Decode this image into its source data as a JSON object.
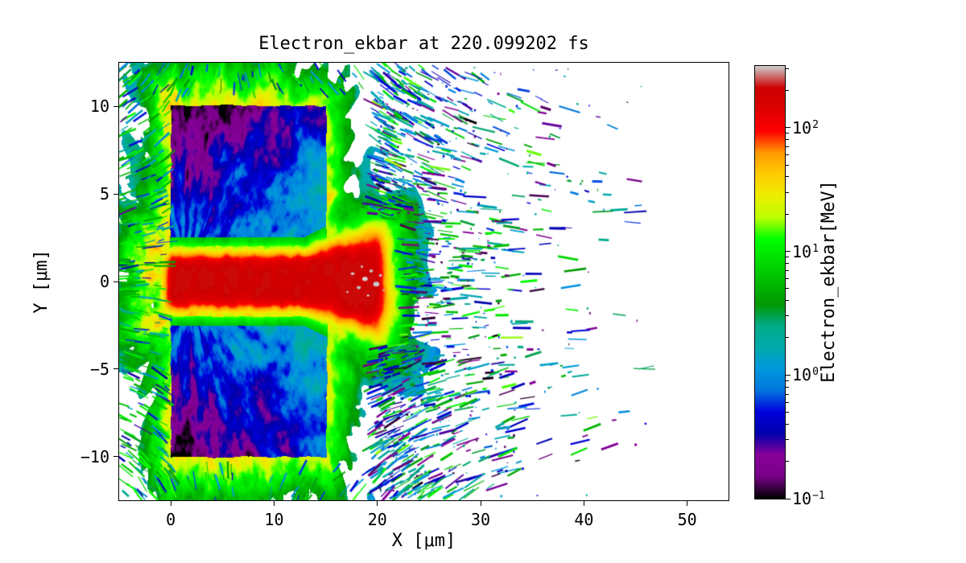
{
  "chart_data": {
    "type": "heatmap",
    "title": "Electron_ekbar at 220.099202 fs",
    "quantity": "Electron_ekbar",
    "time_fs": 220.099202,
    "xlabel": "X [μm]",
    "ylabel": "Y [μm]",
    "xlim": [
      -5,
      54
    ],
    "ylim": [
      -12.5,
      12.5
    ],
    "xticks": [
      0,
      10,
      20,
      30,
      40,
      50
    ],
    "yticks": [
      -10,
      -5,
      0,
      5,
      10
    ],
    "grid": false,
    "background": "#ffffff",
    "colorbar": {
      "label": "Electron_ekbar[MeV]",
      "scale": "log10",
      "vmin": 0.1,
      "vmax": 316,
      "tick_labels": [
        {
          "base": "10",
          "exp": "2",
          "value": 100
        },
        {
          "base": "10",
          "exp": "1",
          "value": 10
        },
        {
          "base": "10",
          "exp": "0",
          "value": 1
        },
        {
          "base": "10",
          "exp": "-1",
          "value": 0.1
        }
      ],
      "colormap": "nipy_spectral",
      "stops": [
        {
          "pos": 0.0,
          "color": "#000000"
        },
        {
          "pos": 0.05,
          "color": "#770088"
        },
        {
          "pos": 0.1,
          "color": "#880099"
        },
        {
          "pos": 0.15,
          "color": "#0000AA"
        },
        {
          "pos": 0.2,
          "color": "#0000DD"
        },
        {
          "pos": 0.25,
          "color": "#0077DD"
        },
        {
          "pos": 0.3,
          "color": "#0099DD"
        },
        {
          "pos": 0.35,
          "color": "#00AAAA"
        },
        {
          "pos": 0.4,
          "color": "#00AA88"
        },
        {
          "pos": 0.45,
          "color": "#009900"
        },
        {
          "pos": 0.5,
          "color": "#00BB00"
        },
        {
          "pos": 0.55,
          "color": "#00DD00"
        },
        {
          "pos": 0.6,
          "color": "#00FF00"
        },
        {
          "pos": 0.65,
          "color": "#BBFF00"
        },
        {
          "pos": 0.7,
          "color": "#EEEE00"
        },
        {
          "pos": 0.75,
          "color": "#FFCC00"
        },
        {
          "pos": 0.8,
          "color": "#FF9900"
        },
        {
          "pos": 0.85,
          "color": "#FF0000"
        },
        {
          "pos": 0.9,
          "color": "#DD0000"
        },
        {
          "pos": 0.95,
          "color": "#CC0000"
        },
        {
          "pos": 1.0,
          "color": "#CCCCCC"
        }
      ]
    },
    "features": {
      "description": "Simulated electron mean kinetic energy map: two cold target slabs pierced by a hot laser-driven channel along y=0, surrounded by a green energetic halo and sprays of ejected low-energy electrons downstream.",
      "target_slabs_um": [
        {
          "x": [
            0,
            15
          ],
          "y": [
            2,
            10
          ],
          "energy_MeV": [
            0.15,
            3
          ]
        },
        {
          "x": [
            0,
            15
          ],
          "y": [
            -10,
            -2
          ],
          "energy_MeV": [
            0.15,
            3
          ]
        }
      ],
      "hot_channel_um": {
        "x": [
          -2,
          22
        ],
        "y": [
          -2,
          2
        ],
        "energy_MeV": [
          50,
          250
        ]
      },
      "halo_energy_MeV": [
        3,
        50
      ],
      "ejected_spray_um": {
        "x": [
          20,
          46
        ],
        "energy_MeV": [
          0.1,
          10
        ]
      },
      "hottest_spots": "gray saturated cells near x=17-21, y=0 (>250 MeV)"
    }
  }
}
